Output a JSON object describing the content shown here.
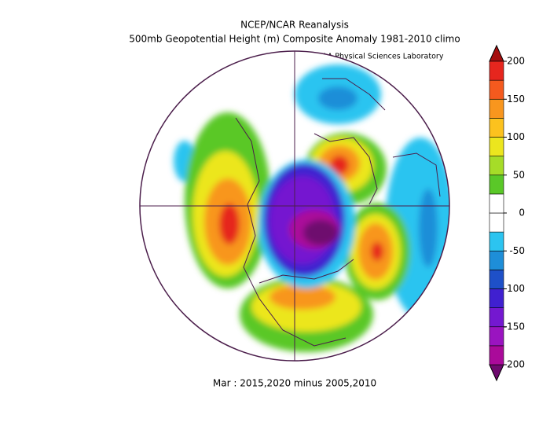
{
  "header": {
    "title": "NCEP/NCAR Reanalysis",
    "subtitle": "500mb Geopotential Height (m) Composite Anomaly 1981-2010 climo",
    "credit": "NOAA Physical Sciences Laboratory"
  },
  "footer": "Mar : 2015,2020 minus 2005,2010",
  "colorbar": {
    "ticks": [
      200,
      150,
      100,
      50,
      0,
      -50,
      -100,
      -150,
      -200
    ],
    "colors": [
      "#6e0a6e",
      "#aa0a9a",
      "#9a14c0",
      "#7418d0",
      "#4020d0",
      "#1e50c8",
      "#1e8ed8",
      "#2cc4f0",
      "#ffffff",
      "#ffffff",
      "#5ac828",
      "#a6dc28",
      "#ece61e",
      "#fcc21e",
      "#f8961e",
      "#f45a1e",
      "#e6261e",
      "#a50e0e"
    ]
  }
}
